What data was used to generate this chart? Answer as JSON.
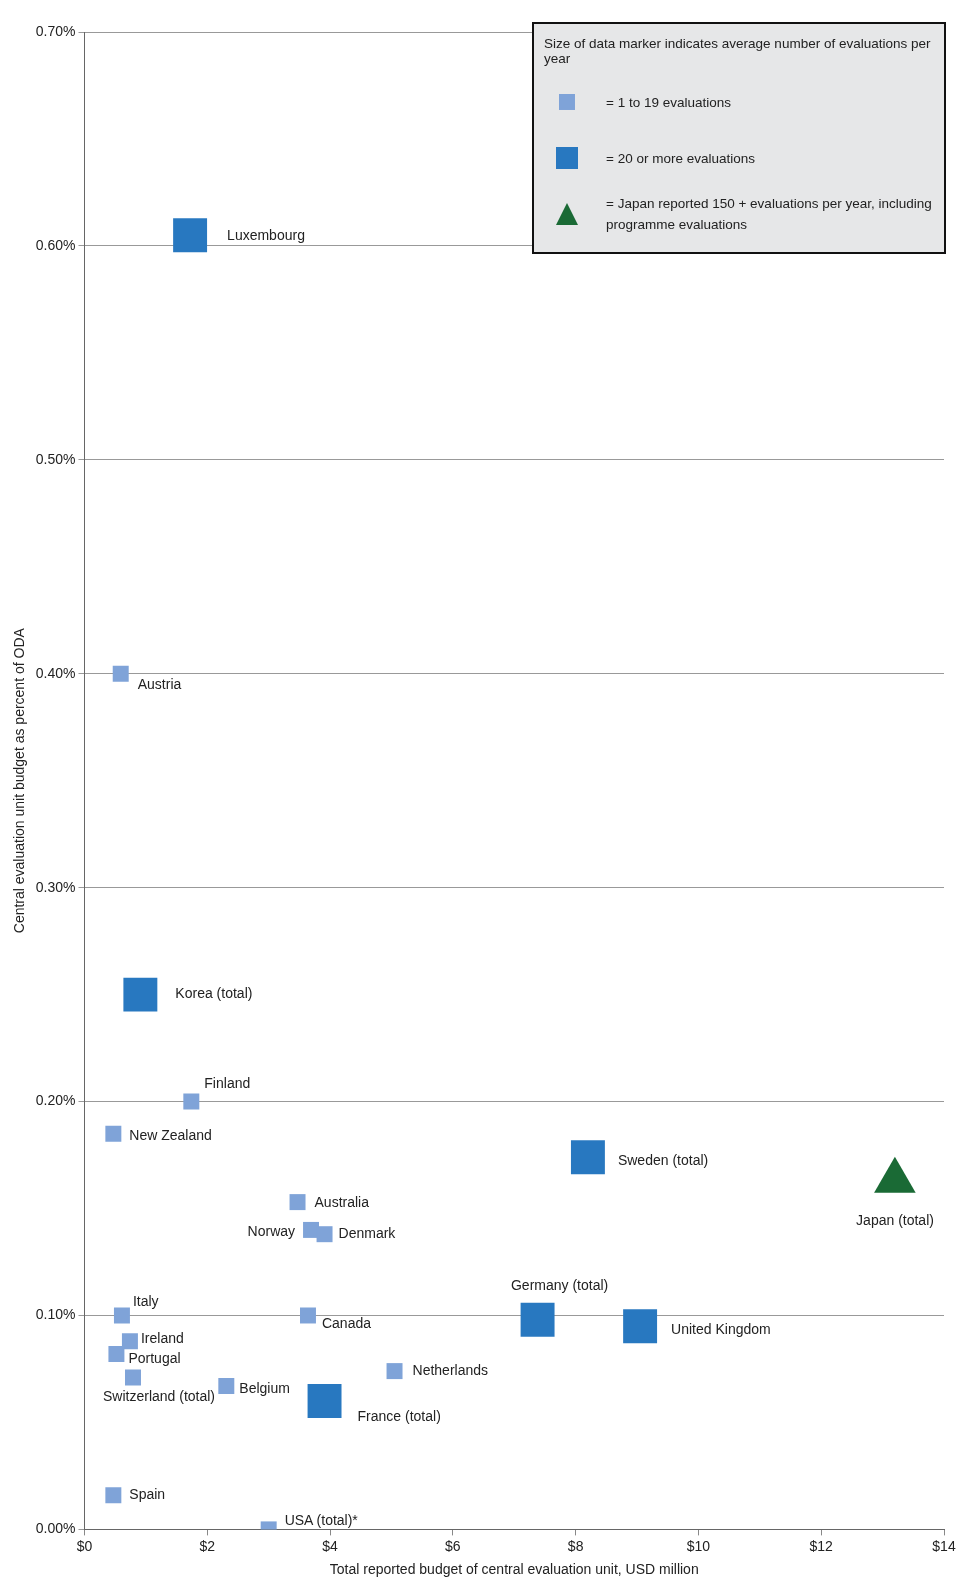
{
  "chart_data": {
    "type": "scatter",
    "xlabel": "Total reported budget of central evaluation unit, USD million",
    "ylabel": "Central evaluation unit budget as percent of ODA",
    "legend_title": "Size of data marker indicates average number of evaluations per year",
    "xlim": [
      0,
      14
    ],
    "xticks": [
      {
        "value": 0,
        "label": "$0"
      },
      {
        "value": 2,
        "label": "$2"
      },
      {
        "value": 4,
        "label": "$4"
      },
      {
        "value": 6,
        "label": "$6"
      },
      {
        "value": 8,
        "label": "$8"
      },
      {
        "value": 10,
        "label": "$10"
      },
      {
        "value": 12,
        "label": "$12"
      },
      {
        "value": 14,
        "label": "$14"
      }
    ],
    "ylim": [
      0,
      0.7
    ],
    "yticks": [
      {
        "value": 0,
        "label": "0.00%"
      },
      {
        "value": 0.1,
        "label": "0.10%"
      },
      {
        "value": 0.2,
        "label": "0.20%"
      },
      {
        "value": 0.3,
        "label": "0.30%"
      },
      {
        "value": 0.4,
        "label": "0.40%"
      },
      {
        "value": 0.5,
        "label": "0.50%"
      },
      {
        "value": 0.6,
        "label": "0.60%"
      },
      {
        "value": 0.7,
        "label": "0.70%"
      }
    ],
    "grid": "y",
    "legend": "top right",
    "series": [
      {
        "name": "= 1 to 19 evaluations",
        "color": "#7fa3d8",
        "marker": "square",
        "x": [
          0.59,
          1.74,
          0.47,
          3.47,
          3.69,
          3.91,
          0.61,
          3.64,
          0.74,
          0.52,
          0.79,
          2.31,
          5.05,
          0.47,
          3.0
        ],
        "values": [
          0.4,
          0.2,
          0.185,
          0.153,
          0.14,
          0.138,
          0.1,
          0.1,
          0.088,
          0.082,
          0.071,
          0.067,
          0.074,
          0.016,
          0.0
        ]
      },
      {
        "name": "= 20 or more evaluations",
        "color": "#2878c0",
        "marker": "square",
        "x": [
          1.72,
          0.91,
          8.2,
          7.38,
          9.05,
          3.91
        ],
        "values": [
          0.605,
          0.25,
          0.174,
          0.098,
          0.095,
          0.06
        ]
      },
      {
        "name": "= Japan reported 150 + evaluations per year, including programme evaluations",
        "color": "#1a6a35",
        "marker": "triangle",
        "x": [
          13.2
        ],
        "values": [
          0.163
        ]
      }
    ],
    "annotations": [
      {
        "text": "Luxembourg",
        "x": 1.72,
        "y": 0.605
      },
      {
        "text": "Austria",
        "x": 0.59,
        "y": 0.4
      },
      {
        "text": "Korea (total)",
        "x": 0.91,
        "y": 0.25
      },
      {
        "text": "Finland",
        "x": 1.74,
        "y": 0.2
      },
      {
        "text": "New Zealand",
        "x": 0.47,
        "y": 0.185
      },
      {
        "text": "Sweden (total)",
        "x": 8.2,
        "y": 0.174
      },
      "Japan (total)",
      {
        "text": "Australia",
        "x": 3.47,
        "y": 0.153
      },
      {
        "text": "Norway",
        "x": 3.69,
        "y": 0.14
      },
      {
        "text": "Denmark",
        "x": 3.91,
        "y": 0.138
      },
      {
        "text": "Italy",
        "x": 0.61,
        "y": 0.1
      },
      {
        "text": "Canada",
        "x": 3.64,
        "y": 0.1
      },
      {
        "text": "Germany (total)",
        "x": 7.38,
        "y": 0.098
      },
      {
        "text": "United Kingdom",
        "x": 9.05,
        "y": 0.095
      },
      {
        "text": "Ireland",
        "x": 0.74,
        "y": 0.088
      },
      {
        "text": "Portugal",
        "x": 0.52,
        "y": 0.082
      },
      {
        "text": "Switzerland (total)",
        "x": 0.79,
        "y": 0.071
      },
      {
        "text": "Belgium",
        "x": 2.31,
        "y": 0.067
      },
      {
        "text": "Netherlands",
        "x": 5.05,
        "y": 0.074
      },
      {
        "text": "France (total)",
        "x": 3.91,
        "y": 0.06
      },
      {
        "text": "Spain",
        "x": 0.47,
        "y": 0.016
      },
      {
        "text": "USA (total)*",
        "x": 3.0,
        "y": 0.0
      }
    ]
  }
}
